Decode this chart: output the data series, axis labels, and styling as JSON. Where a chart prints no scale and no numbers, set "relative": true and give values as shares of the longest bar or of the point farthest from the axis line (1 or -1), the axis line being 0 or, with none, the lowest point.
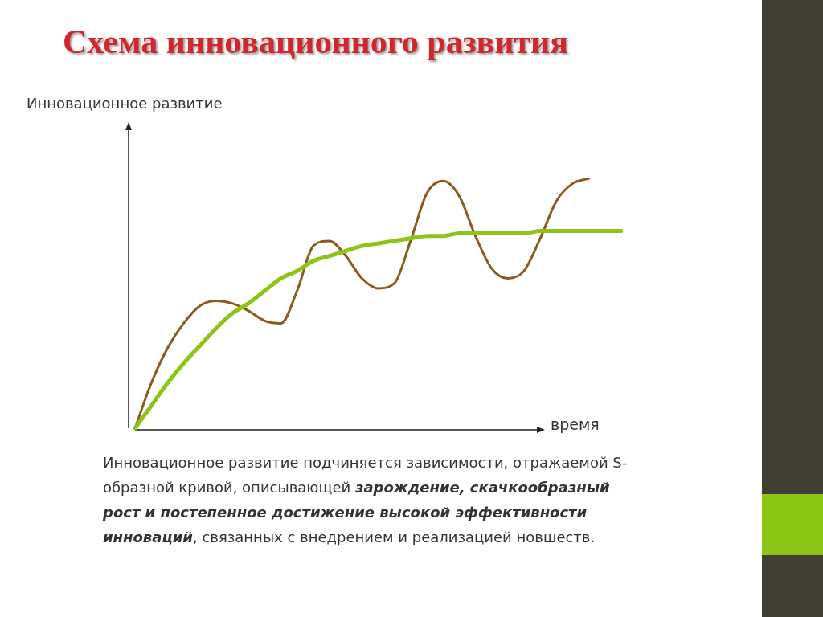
{
  "chart_data": {
    "type": "line",
    "title": "Схема инновационного развития",
    "ylabel": "Инновационное развитие",
    "xlabel": "время",
    "relative": true,
    "legend": false,
    "marker": "none",
    "categories": [
      null,
      null,
      null,
      null,
      null,
      null,
      null,
      null,
      null,
      null,
      null,
      null,
      null,
      null,
      null,
      null,
      null,
      null,
      null,
      null,
      null,
      null,
      null,
      null,
      null,
      null,
      null,
      null,
      null,
      null,
      null
    ],
    "series": [
      {
        "color": "#8cc516",
        "values": [
          0,
          0.09,
          0.18,
          0.26,
          0.33,
          0.4,
          0.46,
          0.5,
          0.55,
          0.6,
          0.63,
          0.67,
          0.69,
          0.71,
          0.73,
          0.74,
          0.75,
          0.76,
          0.77,
          0.77,
          0.78,
          0.78,
          0.78,
          0.78,
          0.78,
          0.79,
          0.79,
          0.79,
          0.79,
          0.79,
          0.79
        ]
      },
      {
        "color": "#8b5a1e",
        "values": [
          0,
          0.18,
          0.32,
          0.42,
          0.49,
          0.51,
          0.5,
          0.47,
          0.43,
          0.42,
          0.55,
          0.73,
          0.75,
          0.69,
          0.6,
          0.56,
          0.58,
          0.75,
          0.94,
          0.99,
          0.93,
          0.77,
          0.64,
          0.6,
          0.63,
          0.76,
          0.91,
          0.98,
          1.0,
          null,
          null
        ]
      }
    ],
    "annotations": [
      "Инновационное развитие подчиняется зависимости, отражаемой S-образной кривой, описывающей ",
      "зарождение, скачкообразный рост и постепенное достижение высокой эффективности инноваций",
      ", связанных с внедрением и реализацией новшеств."
    ]
  }
}
